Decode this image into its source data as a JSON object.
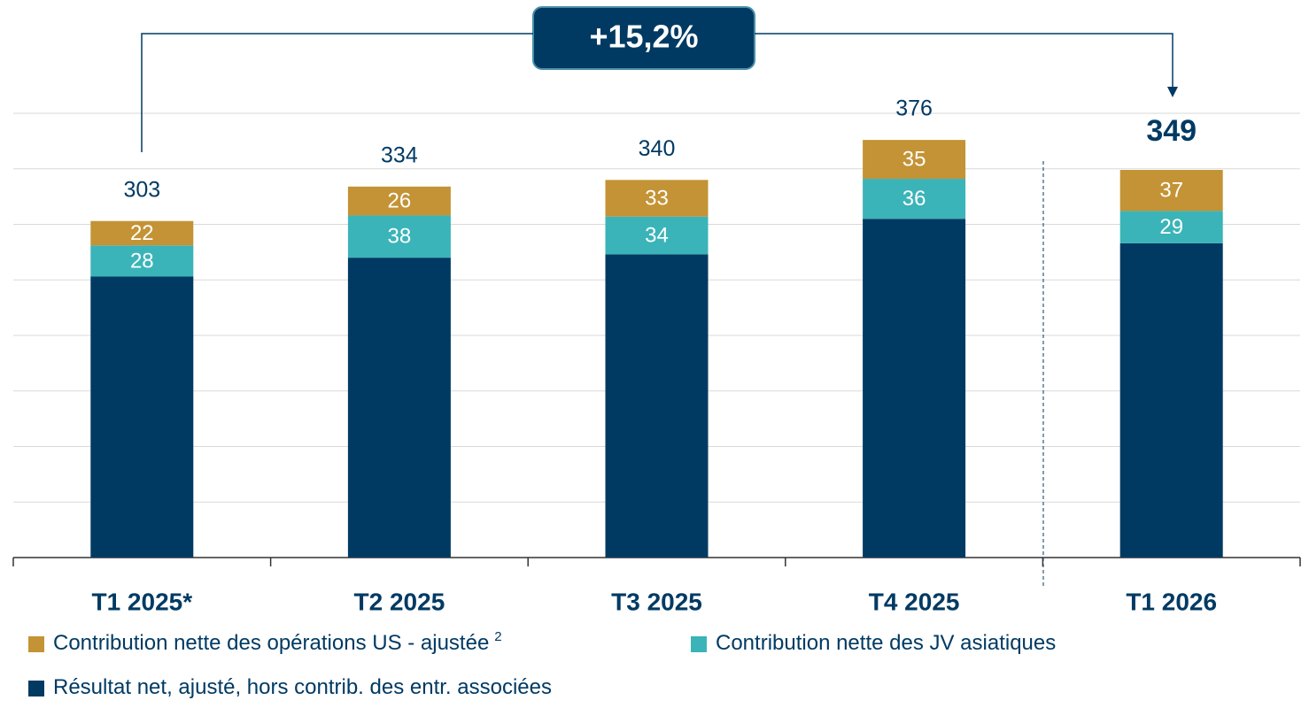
{
  "chart_data": {
    "type": "stacked_bar",
    "categories": [
      "T1 2025*",
      "T2 2025",
      "T3 2025",
      "T4 2025",
      "T1 2026"
    ],
    "series": [
      {
        "name": "Contribution nette des opérations US - ajustée",
        "footnote": "2",
        "color": "#c39335",
        "values": [
          22,
          26,
          33,
          35,
          37
        ]
      },
      {
        "name": "Contribution nette des JV asiatiques",
        "color": "#3ab4b8",
        "values": [
          28,
          38,
          34,
          36,
          29
        ]
      },
      {
        "name": "Résultat net, ajusté, hors contrib. des entr. associées",
        "color": "#003a63",
        "values": [
          253,
          270,
          273,
          305,
          283
        ]
      }
    ],
    "totals": [
      303,
      334,
      340,
      376,
      349
    ],
    "annotation": "+15,2%",
    "ylim": [
      0,
      400
    ],
    "yticks": [
      0,
      50,
      100,
      150,
      200,
      250,
      300,
      350,
      400
    ],
    "grid": true
  }
}
